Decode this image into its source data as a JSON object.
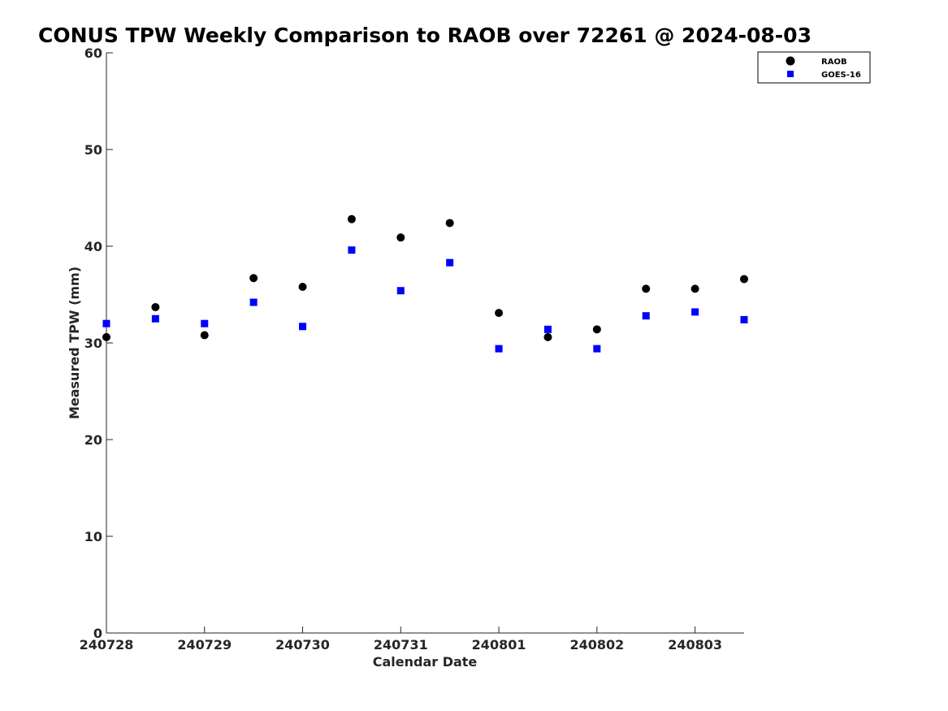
{
  "chart_data": {
    "type": "scatter",
    "title": "CONUS TPW Weekly Comparison to RAOB over 72261 @ 2024-08-03",
    "xlabel": "Calendar Date",
    "ylabel": "Measured TPW (mm)",
    "ylim": [
      0,
      60
    ],
    "yticks": [
      0,
      10,
      20,
      30,
      40,
      50,
      60
    ],
    "x_tick_labels": [
      "240728",
      "240729",
      "240730",
      "240731",
      "240801",
      "240802",
      "240803"
    ],
    "xlim": [
      "2024-07-28 00Z",
      "2024-08-03 12Z"
    ],
    "grid": false,
    "legend_position": "top-right",
    "x": [
      "2024-07-28 00Z",
      "2024-07-28 12Z",
      "2024-07-29 00Z",
      "2024-07-29 12Z",
      "2024-07-30 00Z",
      "2024-07-30 12Z",
      "2024-07-31 00Z",
      "2024-07-31 12Z",
      "2024-08-01 00Z",
      "2024-08-01 12Z",
      "2024-08-02 00Z",
      "2024-08-02 12Z",
      "2024-08-03 00Z",
      "2024-08-03 12Z"
    ],
    "series": [
      {
        "name": "RAOB",
        "marker": "circle",
        "color": "#000000",
        "values": [
          30.6,
          33.7,
          30.8,
          36.7,
          35.8,
          42.8,
          40.9,
          42.4,
          33.1,
          30.6,
          31.4,
          35.6,
          35.6,
          36.6
        ]
      },
      {
        "name": "GOES-16",
        "marker": "square",
        "color": "#0000ff",
        "values": [
          32.0,
          32.5,
          32.0,
          34.2,
          31.7,
          39.6,
          35.4,
          38.3,
          29.4,
          31.4,
          29.4,
          32.8,
          33.2,
          32.4
        ]
      }
    ]
  }
}
